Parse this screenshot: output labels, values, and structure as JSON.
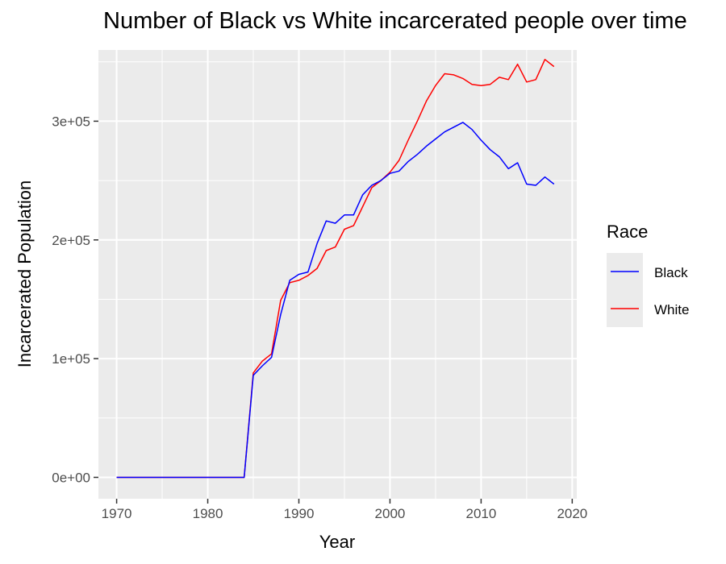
{
  "chart_data": {
    "type": "line",
    "title": "Number of Black vs White incarcerated people over time",
    "xlabel": "Year",
    "ylabel": "Incarcerated Population",
    "xlim": [
      1968,
      2020.5
    ],
    "ylim": [
      -18000,
      360000
    ],
    "x_ticks": [
      1970,
      1980,
      1990,
      2000,
      2010,
      2020
    ],
    "x_tick_labels": [
      "1970",
      "1980",
      "1990",
      "2000",
      "2010",
      "2020"
    ],
    "y_ticks": [
      0,
      100000,
      200000,
      300000
    ],
    "y_tick_labels": [
      "0e+00",
      "1e+05",
      "2e+05",
      "3e+05"
    ],
    "grid": true,
    "legend": {
      "title": "Race",
      "placement": "right"
    },
    "colors": {
      "panel": "#ebebeb",
      "grid": "#ffffff"
    },
    "x": [
      1970,
      1971,
      1972,
      1973,
      1974,
      1975,
      1976,
      1977,
      1978,
      1979,
      1980,
      1981,
      1982,
      1983,
      1984,
      1985,
      1986,
      1987,
      1988,
      1989,
      1990,
      1991,
      1992,
      1993,
      1994,
      1995,
      1996,
      1997,
      1998,
      1999,
      2000,
      2001,
      2002,
      2003,
      2004,
      2005,
      2006,
      2007,
      2008,
      2009,
      2010,
      2011,
      2012,
      2013,
      2014,
      2015,
      2016,
      2017,
      2018
    ],
    "series": [
      {
        "name": "Black",
        "color": "#0000ff",
        "values": [
          0,
          0,
          0,
          0,
          0,
          0,
          0,
          0,
          0,
          0,
          0,
          0,
          0,
          0,
          0,
          86000,
          94000,
          101000,
          137000,
          166000,
          171000,
          173000,
          197000,
          216000,
          214000,
          221000,
          221000,
          238000,
          246000,
          250000,
          256000,
          258000,
          266000,
          272000,
          279000,
          285000,
          291000,
          295000,
          299000,
          293000,
          284000,
          276000,
          270000,
          260000,
          265000,
          247000,
          246000,
          253000,
          247000
        ]
      },
      {
        "name": "White",
        "color": "#ff0000",
        "values": [
          0,
          0,
          0,
          0,
          0,
          0,
          0,
          0,
          0,
          0,
          0,
          0,
          0,
          0,
          0,
          88000,
          98000,
          104000,
          149000,
          164000,
          166000,
          170000,
          176000,
          191000,
          194000,
          209000,
          212000,
          228000,
          244000,
          250000,
          257000,
          267000,
          284000,
          300000,
          317000,
          330000,
          340000,
          339000,
          336000,
          331000,
          330000,
          331000,
          337000,
          335000,
          348000,
          333000,
          335000,
          352000,
          346000
        ]
      }
    ]
  }
}
